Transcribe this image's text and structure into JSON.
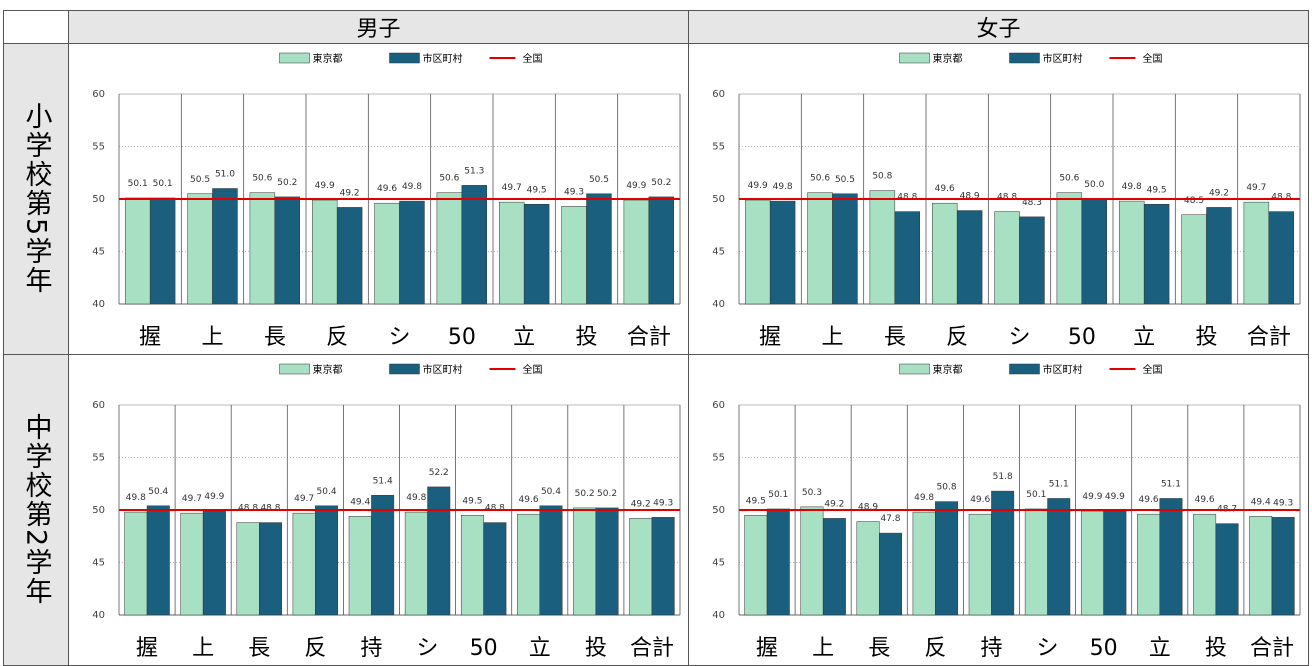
{
  "header": {
    "male": "男子",
    "female": "女子"
  },
  "rows": [
    {
      "label": "小学校第5学年"
    },
    {
      "label": "中学校第2学年"
    }
  ],
  "legend": {
    "tokyo": "東京都",
    "city": "市区町村",
    "national": "全国"
  },
  "colors": {
    "tokyo": "#a8e0c4",
    "city": "#1b5f7f",
    "national": "#e00000",
    "grid": "#aaaaaa"
  },
  "chart_data": [
    {
      "type": "bar",
      "categories": [
        "握",
        "上",
        "長",
        "反",
        "シ",
        "50",
        "立",
        "投",
        "合計"
      ],
      "series": [
        {
          "name": "東京都",
          "values": [
            50.1,
            50.5,
            50.6,
            49.9,
            49.6,
            50.6,
            49.7,
            49.3,
            49.9
          ]
        },
        {
          "name": "市区町村",
          "values": [
            50.1,
            51.0,
            50.2,
            49.2,
            49.8,
            51.3,
            49.5,
            50.5,
            50.2
          ]
        },
        {
          "name": "全国",
          "values": [
            50,
            50,
            50,
            50,
            50,
            50,
            50,
            50,
            50
          ]
        }
      ],
      "ylim": [
        40,
        60
      ],
      "yticks": [
        40,
        45,
        50,
        55,
        60
      ],
      "legend": "top",
      "grid": true
    },
    {
      "type": "bar",
      "categories": [
        "握",
        "上",
        "長",
        "反",
        "シ",
        "50",
        "立",
        "投",
        "合計"
      ],
      "series": [
        {
          "name": "東京都",
          "values": [
            49.9,
            50.6,
            50.8,
            49.6,
            48.8,
            50.6,
            49.8,
            48.5,
            49.7
          ]
        },
        {
          "name": "市区町村",
          "values": [
            49.8,
            50.5,
            48.8,
            48.9,
            48.3,
            50.0,
            49.5,
            49.2,
            48.8
          ]
        },
        {
          "name": "全国",
          "values": [
            50,
            50,
            50,
            50,
            50,
            50,
            50,
            50,
            50
          ]
        }
      ],
      "ylim": [
        40,
        60
      ],
      "yticks": [
        40,
        45,
        50,
        55,
        60
      ],
      "legend": "top",
      "grid": true
    },
    {
      "type": "bar",
      "categories": [
        "握",
        "上",
        "長",
        "反",
        "持",
        "シ",
        "50",
        "立",
        "投",
        "合計"
      ],
      "series": [
        {
          "name": "東京都",
          "values": [
            49.8,
            49.7,
            48.8,
            49.7,
            49.4,
            49.8,
            49.5,
            49.6,
            50.2,
            49.2
          ]
        },
        {
          "name": "市区町村",
          "values": [
            50.4,
            49.9,
            48.8,
            50.4,
            51.4,
            52.2,
            48.8,
            50.4,
            50.2,
            49.3
          ]
        },
        {
          "name": "全国",
          "values": [
            50,
            50,
            50,
            50,
            50,
            50,
            50,
            50,
            50,
            50
          ]
        }
      ],
      "ylim": [
        40,
        60
      ],
      "yticks": [
        40,
        45,
        50,
        55,
        60
      ],
      "legend": "top",
      "grid": true
    },
    {
      "type": "bar",
      "categories": [
        "握",
        "上",
        "長",
        "反",
        "持",
        "シ",
        "50",
        "立",
        "投",
        "合計"
      ],
      "series": [
        {
          "name": "東京都",
          "values": [
            49.5,
            50.3,
            48.9,
            49.8,
            49.6,
            50.1,
            49.9,
            49.6,
            49.6,
            49.4
          ]
        },
        {
          "name": "市区町村",
          "values": [
            50.1,
            49.2,
            47.8,
            50.8,
            51.8,
            51.1,
            49.9,
            51.1,
            48.7,
            49.3
          ]
        },
        {
          "name": "全国",
          "values": [
            50,
            50,
            50,
            50,
            50,
            50,
            50,
            50,
            50,
            50
          ]
        }
      ],
      "ylim": [
        40,
        60
      ],
      "yticks": [
        40,
        45,
        50,
        55,
        60
      ],
      "legend": "top",
      "grid": true
    }
  ]
}
